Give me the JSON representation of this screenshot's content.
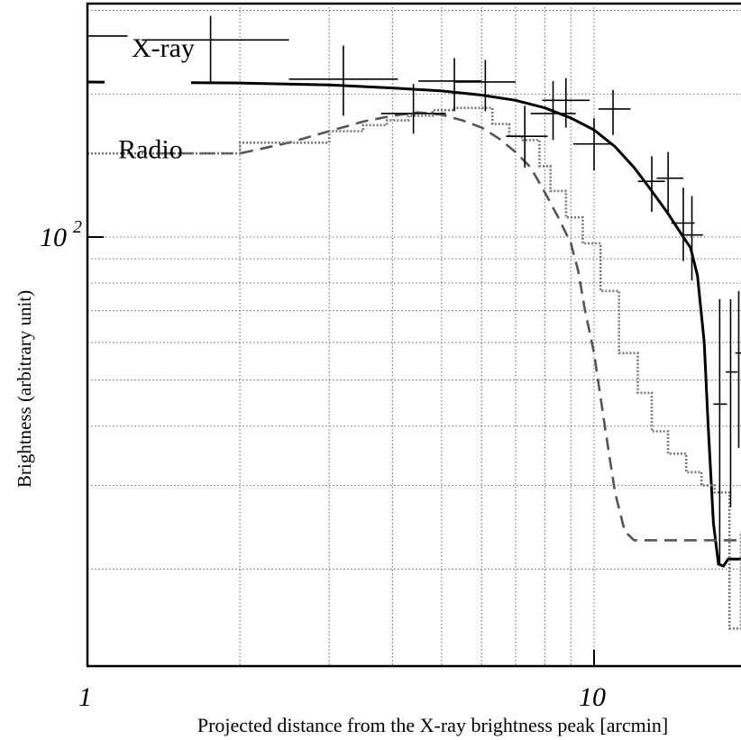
{
  "chart_data": {
    "type": "line",
    "xlabel": "Projected distance from the X-ray brightness peak [arcmin]",
    "ylabel": "Brightness  (arbitrary unit)",
    "x_scale": "log",
    "y_scale": "log",
    "xlim": [
      1,
      19.5
    ],
    "ylim": [
      12.5,
      310
    ],
    "grid": true,
    "x_tick_labels": [
      {
        "value": 1,
        "label": "1"
      },
      {
        "value": 10,
        "label": "10"
      }
    ],
    "y_tick_labels": [
      {
        "value": 100,
        "label": "10",
        "exponent": "2"
      }
    ],
    "annotations": [
      {
        "text": "X-ray",
        "x": 1.55,
        "y": 250
      },
      {
        "text": "Radio",
        "x": 1.4,
        "y": 153
      }
    ],
    "series": [
      {
        "name": "X-ray",
        "kind": "model",
        "color": "#000000",
        "dash": "solid",
        "points": [
          [
            1,
            212
          ],
          [
            2,
            211
          ],
          [
            3,
            209
          ],
          [
            4,
            206
          ],
          [
            5,
            203
          ],
          [
            6,
            199
          ],
          [
            7,
            194
          ],
          [
            8,
            187
          ],
          [
            9,
            178
          ],
          [
            10,
            168
          ],
          [
            11,
            155
          ],
          [
            12,
            140
          ],
          [
            13,
            125
          ],
          [
            14,
            112
          ],
          [
            15,
            100
          ],
          [
            15.5,
            95
          ],
          [
            16,
            83
          ],
          [
            16.5,
            60
          ],
          [
            16.8,
            40
          ],
          [
            17.2,
            25
          ],
          [
            17.6,
            20.5
          ],
          [
            18,
            20.3
          ],
          [
            18.4,
            21
          ],
          [
            19.5,
            21
          ]
        ]
      },
      {
        "name": "X-ray",
        "kind": "data",
        "color": "#000000",
        "points": [
          {
            "x": 1.1,
            "xlo": 1.0,
            "xhi": 1.2,
            "y": 265,
            "ylo": 265,
            "yhi": 265
          },
          {
            "x": 1.75,
            "xlo": 1.28,
            "xhi": 2.5,
            "y": 260,
            "ylo": 212,
            "yhi": 292
          },
          {
            "x": 3.2,
            "xlo": 2.5,
            "xhi": 4.1,
            "y": 215,
            "ylo": 180,
            "yhi": 253
          },
          {
            "x": 4.4,
            "xlo": 3.8,
            "xhi": 5.1,
            "y": 182,
            "ylo": 165,
            "yhi": 210
          },
          {
            "x": 5.3,
            "xlo": 4.5,
            "xhi": 6.0,
            "y": 213,
            "ylo": 184,
            "yhi": 238
          },
          {
            "x": 6.1,
            "xlo": 5.3,
            "xhi": 7.0,
            "y": 212,
            "ylo": 184,
            "yhi": 236
          },
          {
            "x": 7.3,
            "xlo": 6.7,
            "xhi": 8.1,
            "y": 163,
            "ylo": 140,
            "yhi": 189
          },
          {
            "x": 8.3,
            "xlo": 7.5,
            "xhi": 9.2,
            "y": 182,
            "ylo": 160,
            "yhi": 213
          },
          {
            "x": 8.8,
            "xlo": 7.9,
            "xhi": 9.8,
            "y": 194,
            "ylo": 170,
            "yhi": 216
          },
          {
            "x": 10.0,
            "xlo": 9.1,
            "xhi": 10.8,
            "y": 157,
            "ylo": 138,
            "yhi": 178
          },
          {
            "x": 10.9,
            "xlo": 10.2,
            "xhi": 11.8,
            "y": 186,
            "ylo": 164,
            "yhi": 204
          },
          {
            "x": 13.0,
            "xlo": 12.2,
            "xhi": 13.8,
            "y": 131,
            "ylo": 113,
            "yhi": 148
          },
          {
            "x": 14.0,
            "xlo": 13.3,
            "xhi": 15.0,
            "y": 133,
            "ylo": 113,
            "yhi": 151
          },
          {
            "x": 15.0,
            "xlo": 14.2,
            "xhi": 15.8,
            "y": 107,
            "ylo": 89,
            "yhi": 127
          },
          {
            "x": 15.6,
            "xlo": 15.0,
            "xhi": 16.4,
            "y": 101,
            "ylo": 81,
            "yhi": 122
          },
          {
            "x": 17.7,
            "xlo": 17.2,
            "xhi": 18.3,
            "y": 44.5,
            "ylo": 20.5,
            "yhi": 74
          },
          {
            "x": 18.6,
            "xlo": 18.2,
            "xhi": 19.2,
            "y": 52,
            "ylo": 27,
            "yhi": 74
          },
          {
            "x": 19.3,
            "xlo": 19.0,
            "xhi": 19.5,
            "y": 57,
            "ylo": 36,
            "yhi": 77
          }
        ]
      },
      {
        "name": "Radio",
        "kind": "model",
        "color": "#555555",
        "dash": "dashed",
        "points": [
          [
            1.4,
            150
          ],
          [
            2,
            150
          ],
          [
            2.5,
            158
          ],
          [
            3,
            167
          ],
          [
            3.5,
            175
          ],
          [
            4,
            180
          ],
          [
            4.5,
            183
          ],
          [
            5,
            181
          ],
          [
            5.5,
            176
          ],
          [
            6,
            170
          ],
          [
            6.5,
            161
          ],
          [
            7,
            151
          ],
          [
            7.5,
            140
          ],
          [
            8,
            124
          ],
          [
            8.5,
            110
          ],
          [
            9,
            97
          ],
          [
            9.3,
            85
          ],
          [
            9.6,
            70
          ],
          [
            10,
            57
          ],
          [
            10.5,
            40
          ],
          [
            11,
            29
          ],
          [
            11.5,
            24
          ],
          [
            12,
            23
          ],
          [
            13,
            23
          ],
          [
            15,
            23
          ],
          [
            19.5,
            23
          ]
        ]
      },
      {
        "name": "Radio",
        "kind": "data",
        "color": "#777777",
        "dash": "dotted",
        "step_edges": [
          1.0,
          2.0,
          3.0,
          3.5,
          3.9,
          4.3,
          4.8,
          5.3,
          5.8,
          6.3,
          6.8,
          7.2,
          7.8,
          8.2,
          8.8,
          9.5,
          10.3,
          11.2,
          12.2,
          13.0,
          14.0,
          15.2,
          16.3,
          17.3,
          18.5,
          19.5
        ],
        "step_values": [
          150,
          158,
          167,
          172,
          176,
          180,
          185,
          187,
          187,
          173,
          163,
          160,
          141,
          125,
          110,
          97,
          77,
          57,
          47,
          39,
          35,
          32,
          30,
          29,
          15,
          24
        ]
      }
    ]
  }
}
